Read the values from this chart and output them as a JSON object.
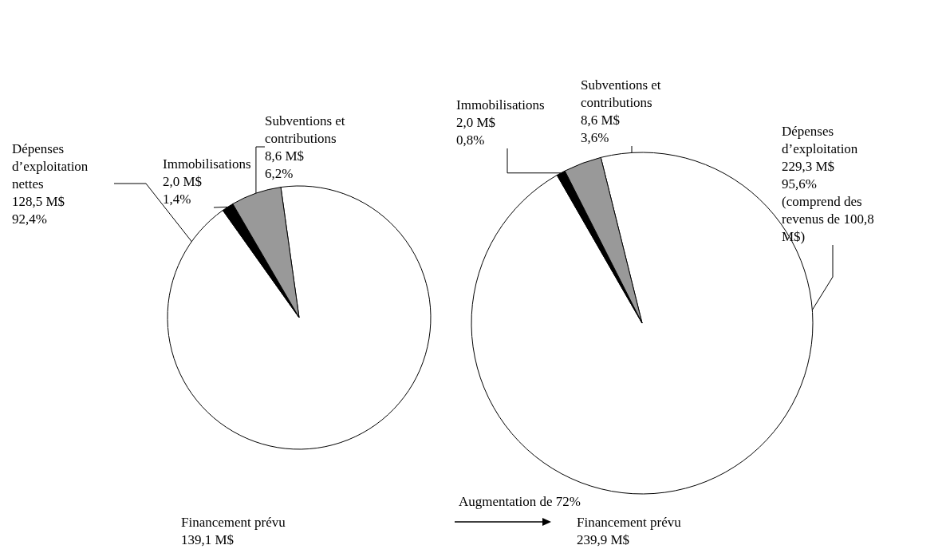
{
  "chart_data": [
    {
      "type": "pie",
      "title": "Financement prévu\n139,1 M$",
      "categories": [
        "Dépenses d’exploitation nettes",
        "Immobilisations",
        "Subventions et contributions"
      ],
      "values": [
        128.5,
        2.0,
        8.6
      ],
      "value_labels": [
        "128,5 M$\n92,4%",
        "2,0 M$\n1,4%",
        "8,6 M$\n6,2%"
      ],
      "colors": [
        "#ffffff",
        "#000000",
        "#999999"
      ],
      "annotations": [
        "Augmentation de 72%"
      ]
    },
    {
      "type": "pie",
      "title": "Financement prévu\n239,9 M$",
      "categories": [
        "Dépenses d’exploitation",
        "Immobilisations",
        "Subventions et contributions"
      ],
      "values": [
        229.3,
        2.0,
        8.6
      ],
      "value_labels": [
        "229,3 M$\n95,6%\n(comprend des revenus de 100,8 M$)",
        "2,0 M$\n0,8%",
        "8,6 M$\n3,6%"
      ],
      "colors": [
        "#ffffff",
        "#000000",
        "#999999"
      ]
    }
  ]
}
